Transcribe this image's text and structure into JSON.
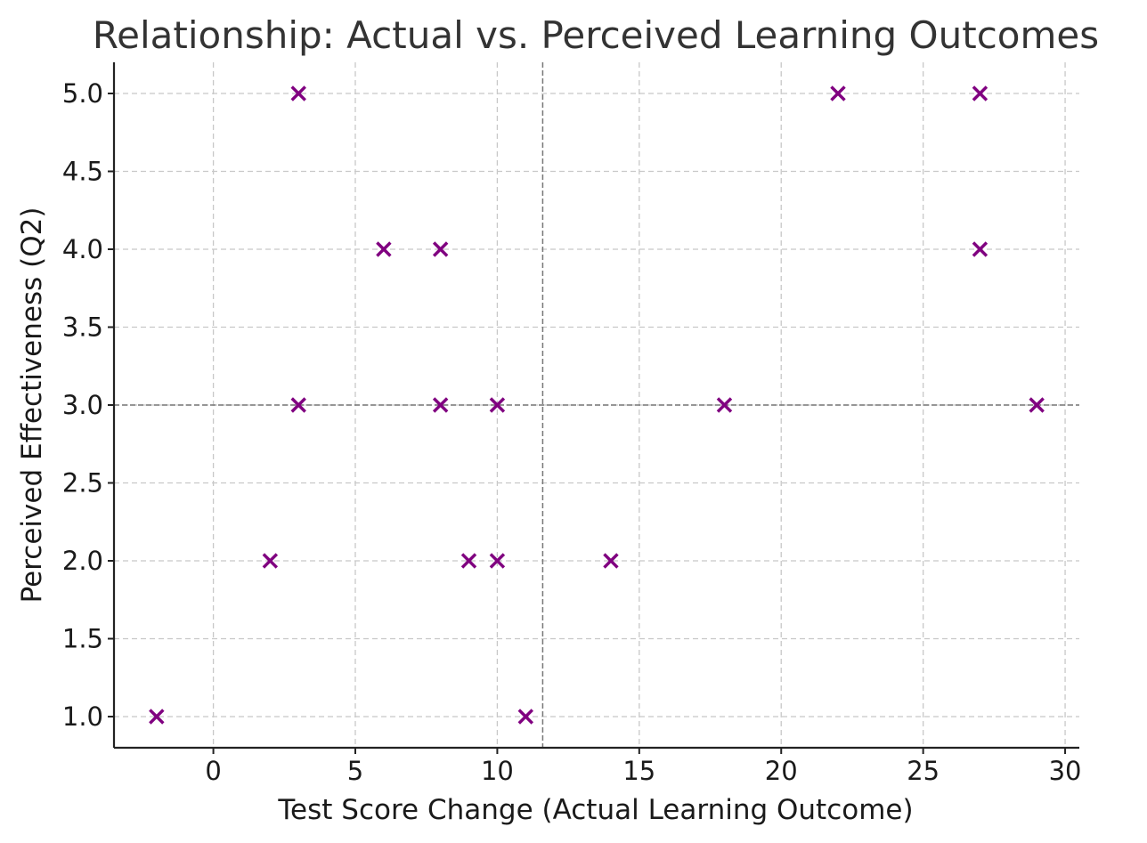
{
  "chart_data": {
    "type": "scatter",
    "title": "Relationship: Actual vs. Perceived Learning Outcomes",
    "xlabel": "Test Score Change (Actual Learning Outcome)",
    "ylabel": "Perceived Effectiveness (Q2)",
    "xlim": [
      -3.5,
      30.5
    ],
    "ylim": [
      0.8,
      5.2
    ],
    "x_ticks": [
      0,
      5,
      10,
      15,
      20,
      25,
      30
    ],
    "x_tick_labels": [
      "0",
      "5",
      "10",
      "15",
      "20",
      "25",
      "30"
    ],
    "y_ticks": [
      1.0,
      1.5,
      2.0,
      2.5,
      3.0,
      3.5,
      4.0,
      4.5,
      5.0
    ],
    "y_tick_labels": [
      "1.0",
      "1.5",
      "2.0",
      "2.5",
      "3.0",
      "3.5",
      "4.0",
      "4.5",
      "5.0"
    ],
    "grid": true,
    "marker": "x",
    "marker_color": "#800080",
    "reference_lines": {
      "vertical_x": 11.6,
      "horizontal_y": 3.0,
      "color": "#777777"
    },
    "points": [
      {
        "x": -2,
        "y": 1
      },
      {
        "x": 2,
        "y": 2
      },
      {
        "x": 3,
        "y": 5
      },
      {
        "x": 3,
        "y": 3
      },
      {
        "x": 6,
        "y": 4
      },
      {
        "x": 8,
        "y": 4
      },
      {
        "x": 8,
        "y": 3
      },
      {
        "x": 9,
        "y": 2
      },
      {
        "x": 10,
        "y": 3
      },
      {
        "x": 10,
        "y": 2
      },
      {
        "x": 11,
        "y": 1
      },
      {
        "x": 14,
        "y": 2
      },
      {
        "x": 18,
        "y": 3
      },
      {
        "x": 22,
        "y": 5
      },
      {
        "x": 27,
        "y": 5
      },
      {
        "x": 27,
        "y": 4
      },
      {
        "x": 29,
        "y": 3
      }
    ]
  }
}
